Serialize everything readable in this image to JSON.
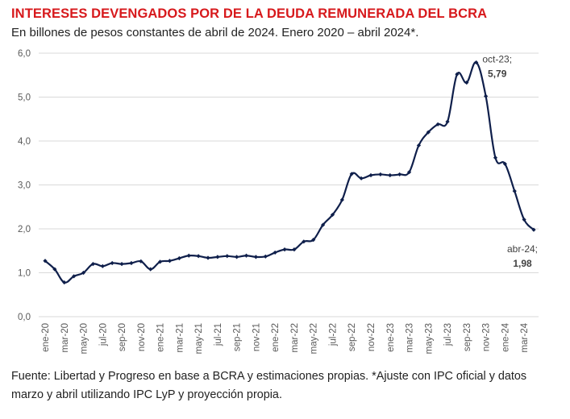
{
  "header": {
    "title": "INTERESES DEVENGADOS POR DE LA DEUDA REMUNERADA DEL BCRA",
    "subtitle": "En billones de pesos constantes de abril de 2024. Enero 2020 – abril 2024*."
  },
  "footer": {
    "source": "Fuente: Libertad y Progreso en base a BCRA y estimaciones propias. *Ajuste con IPC oficial y datos marzo y abril utilizando IPC LyP y proyección propia."
  },
  "colors": {
    "title": "#d7191c",
    "line": "#0f1f4b",
    "grid": "#d9d9d9",
    "axis_text": "#595959"
  },
  "chart_data": {
    "type": "line",
    "title": "INTERESES DEVENGADOS POR DE LA DEUDA REMUNERADA DEL BCRA",
    "xlabel": "",
    "ylabel": "",
    "ylim": [
      0,
      6
    ],
    "yticks": [
      "0,0",
      "1,0",
      "2,0",
      "3,0",
      "4,0",
      "5,0",
      "6,0"
    ],
    "grid": true,
    "legend": "none",
    "x": [
      "ene-20",
      "feb-20",
      "mar-20",
      "abr-20",
      "may-20",
      "jun-20",
      "jul-20",
      "ago-20",
      "sep-20",
      "oct-20",
      "nov-20",
      "dic-20",
      "ene-21",
      "feb-21",
      "mar-21",
      "abr-21",
      "may-21",
      "jun-21",
      "jul-21",
      "ago-21",
      "sep-21",
      "oct-21",
      "nov-21",
      "dic-21",
      "ene-22",
      "feb-22",
      "mar-22",
      "abr-22",
      "may-22",
      "jun-22",
      "jul-22",
      "ago-22",
      "sep-22",
      "oct-22",
      "nov-22",
      "dic-22",
      "ene-23",
      "feb-23",
      "mar-23",
      "abr-23",
      "may-23",
      "jun-23",
      "jul-23",
      "ago-23",
      "sep-23",
      "oct-23",
      "nov-23",
      "dic-23",
      "ene-24",
      "feb-24",
      "mar-24",
      "abr-24"
    ],
    "x_tick_labels": [
      "ene-20",
      "mar-20",
      "may-20",
      "jul-20",
      "sep-20",
      "nov-20",
      "ene-21",
      "mar-21",
      "may-21",
      "jul-21",
      "sep-21",
      "nov-21",
      "ene-22",
      "mar-22",
      "may-22",
      "jul-22",
      "sep-22",
      "nov-22",
      "ene-23",
      "mar-23",
      "may-23",
      "jul-23",
      "sep-23",
      "nov-23",
      "ene-24",
      "mar-24"
    ],
    "series": [
      {
        "name": "",
        "values": [
          1.27,
          1.08,
          0.78,
          0.92,
          1.0,
          1.2,
          1.15,
          1.22,
          1.2,
          1.22,
          1.26,
          1.08,
          1.25,
          1.27,
          1.33,
          1.39,
          1.38,
          1.34,
          1.36,
          1.38,
          1.36,
          1.39,
          1.36,
          1.37,
          1.46,
          1.53,
          1.53,
          1.71,
          1.75,
          2.09,
          2.32,
          2.66,
          3.25,
          3.15,
          3.22,
          3.24,
          3.22,
          3.24,
          3.29,
          3.9,
          4.2,
          4.38,
          4.44,
          5.52,
          5.33,
          5.79,
          5.02,
          3.62,
          3.48,
          2.86,
          2.21,
          1.98
        ]
      }
    ],
    "annotations": [
      {
        "x": "oct-23",
        "label": "oct-23;",
        "value": "5,79"
      },
      {
        "x": "abr-24",
        "label": "abr-24;",
        "value": "1,98"
      }
    ]
  }
}
